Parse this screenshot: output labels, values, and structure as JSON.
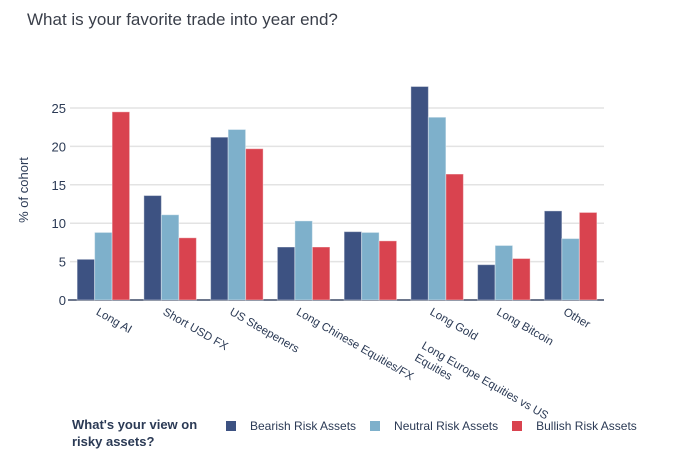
{
  "chart_data": {
    "type": "bar",
    "title": "What is your favorite trade into year end?",
    "ylabel": "% of cohort",
    "xlabel": "",
    "ylim": [
      0,
      28
    ],
    "yticks": [
      0,
      5,
      10,
      15,
      20,
      25
    ],
    "grid": true,
    "legend_position": "bottom",
    "legend_title": "What's your view on risky assets?",
    "categories": [
      "Long AI",
      "Short USD FX",
      "US Steepeners",
      "Long Chinese Equities/FX",
      "Long Europe Equities vs US Equities",
      "Long Gold",
      "Long Bitcoin",
      "Other"
    ],
    "series": [
      {
        "name": "Bearish Risk Assets",
        "color": "#3d5282",
        "values": [
          5.3,
          13.6,
          21.2,
          6.9,
          8.9,
          27.8,
          4.6,
          11.6
        ]
      },
      {
        "name": "Neutral Risk Assets",
        "color": "#7eb0cb",
        "values": [
          8.8,
          11.1,
          22.2,
          10.3,
          8.8,
          23.8,
          7.1,
          8.0
        ]
      },
      {
        "name": "Bullish Risk Assets",
        "color": "#d9434f",
        "values": [
          24.5,
          8.1,
          19.7,
          6.9,
          7.7,
          16.4,
          5.4,
          11.4
        ]
      }
    ]
  }
}
